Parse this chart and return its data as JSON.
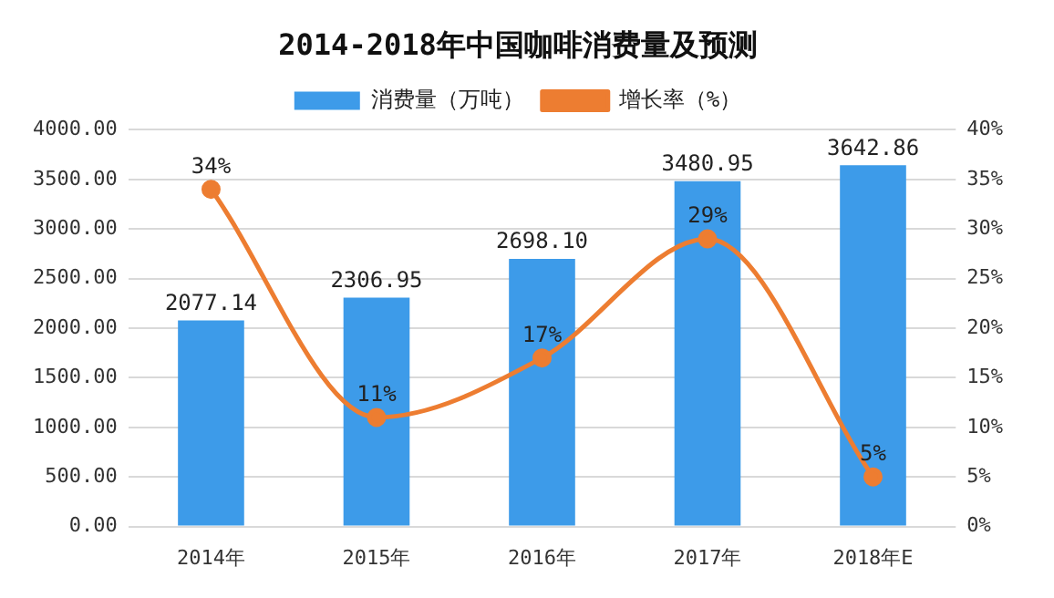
{
  "chart_data": {
    "type": "bar",
    "title": "2014-2018年中国咖啡消费量及预测",
    "categories": [
      "2014年",
      "2015年",
      "2016年",
      "2017年",
      "2018年E"
    ],
    "series": [
      {
        "name": "消费量（万吨）",
        "color": "#3d9be9",
        "values": [
          2077.14,
          2306.95,
          2698.1,
          3480.95,
          3642.86
        ],
        "value_labels": [
          "2077.14",
          "2306.95",
          "2698.10",
          "3480.95",
          "3642.86"
        ]
      },
      {
        "name": "增长率（%）",
        "type": "line",
        "axis": "y2",
        "color": "#ed7d31",
        "values": [
          34,
          11,
          17,
          29,
          5
        ],
        "value_labels": [
          "34%",
          "11%",
          "17%",
          "29%",
          "5%"
        ]
      }
    ],
    "ylim": [
      0,
      4000
    ],
    "yticks": [
      {
        "value": 0,
        "label": "0.00"
      },
      {
        "value": 500,
        "label": "500.00"
      },
      {
        "value": 1000,
        "label": "1000.00"
      },
      {
        "value": 1500,
        "label": "1500.00"
      },
      {
        "value": 2000,
        "label": "2000.00"
      },
      {
        "value": 2500,
        "label": "2500.00"
      },
      {
        "value": 3000,
        "label": "3000.00"
      },
      {
        "value": 3500,
        "label": "3500.00"
      },
      {
        "value": 4000,
        "label": "4000.00"
      }
    ],
    "y2lim": [
      0,
      40
    ],
    "y2ticks": [
      {
        "value": 0,
        "label": "0%"
      },
      {
        "value": 5,
        "label": "5%"
      },
      {
        "value": 10,
        "label": "10%"
      },
      {
        "value": 15,
        "label": "15%"
      },
      {
        "value": 20,
        "label": "20%"
      },
      {
        "value": 25,
        "label": "25%"
      },
      {
        "value": 30,
        "label": "30%"
      },
      {
        "value": 35,
        "label": "35%"
      },
      {
        "value": 40,
        "label": "40%"
      }
    ],
    "grid": "y",
    "legend": "top",
    "marker": "circle",
    "line_style": "solid"
  }
}
